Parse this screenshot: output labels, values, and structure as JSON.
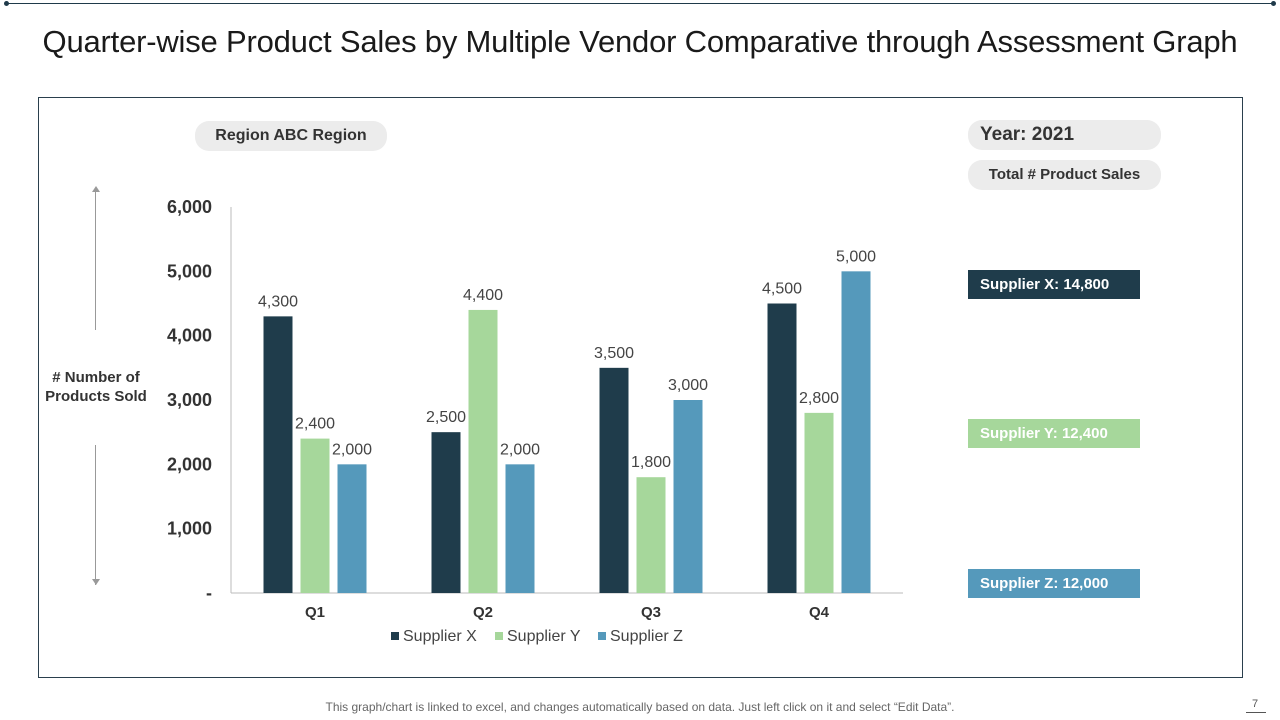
{
  "title": "Quarter-wise Product Sales by Multiple Vendor Comparative through Assessment Graph",
  "region_label": "Region ABC Region",
  "year_label": "Year: 2021",
  "total_label": "Total # Product Sales",
  "supplier_totals": [
    {
      "label": "Supplier X: 14,800",
      "color": "#1f3c4b"
    },
    {
      "label": "Supplier Y: 12,400",
      "color": "#a6d79b"
    },
    {
      "label": "Supplier Z: 12,000",
      "color": "#5599bb"
    }
  ],
  "y_axis_title": "# Number of Products Sold",
  "footer_note": "This graph/chart is linked to excel, and changes automatically based on data. Just left click on it and select “Edit Data”.",
  "page_number": "7",
  "chart_data": {
    "type": "bar",
    "categories": [
      "Q1",
      "Q2",
      "Q3",
      "Q4"
    ],
    "series": [
      {
        "name": "Supplier X",
        "color": "#1f3c4b",
        "values": [
          4300,
          2500,
          3500,
          4500
        ],
        "labels": [
          "4,300",
          "2,500",
          "3,500",
          "4,500"
        ]
      },
      {
        "name": "Supplier Y",
        "color": "#a6d79b",
        "values": [
          2400,
          4400,
          1800,
          2800
        ],
        "labels": [
          "2,400",
          "4,400",
          "1,800",
          "2,800"
        ]
      },
      {
        "name": "Supplier Z",
        "color": "#5599bb",
        "values": [
          2000,
          2000,
          3000,
          5000
        ],
        "labels": [
          "2,000",
          "2,000",
          "3,000",
          "5,000"
        ]
      }
    ],
    "ylim": [
      0,
      6000
    ],
    "yticks": [
      0,
      1000,
      2000,
      3000,
      4000,
      5000,
      6000
    ],
    "ytick_labels": [
      "-",
      "1,000",
      "2,000",
      "3,000",
      "4,000",
      "5,000",
      "6,000"
    ],
    "legend_position": "bottom",
    "grid": false
  }
}
